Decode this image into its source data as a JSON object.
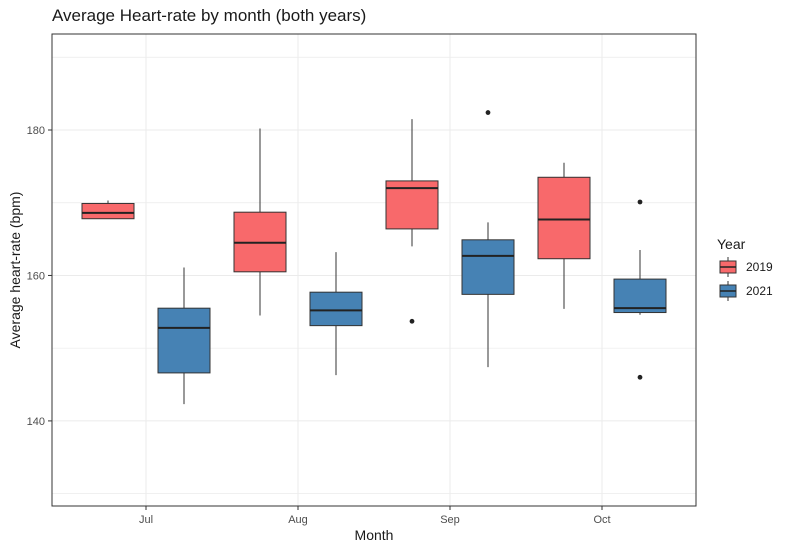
{
  "chart_data": {
    "type": "boxplot",
    "title": "Average Heart-rate by month (both years)",
    "xlabel": "Month",
    "ylabel": "Average heart-rate (bpm)",
    "categories": [
      "Jul",
      "Aug",
      "Sep",
      "Oct"
    ],
    "ylim": [
      128.3,
      193.2
    ],
    "yticks": [
      140,
      160,
      180
    ],
    "grid": true,
    "legend": {
      "title": "Year",
      "position": "right"
    },
    "series": [
      {
        "name": "2019",
        "color": "#F8696B",
        "boxes": [
          {
            "category": "Jul",
            "min": 167.8,
            "q1": 167.8,
            "median": 168.6,
            "q3": 169.9,
            "max": 170.3,
            "outliers": []
          },
          {
            "category": "Aug",
            "min": 154.5,
            "q1": 160.5,
            "median": 164.5,
            "q3": 168.7,
            "max": 180.2,
            "outliers": []
          },
          {
            "category": "Sep",
            "min": 164.0,
            "q1": 166.4,
            "median": 172.0,
            "q3": 173.0,
            "max": 181.5,
            "outliers": [
              153.7
            ]
          },
          {
            "category": "Oct",
            "min": 155.4,
            "q1": 162.3,
            "median": 167.7,
            "q3": 173.5,
            "max": 175.5,
            "outliers": []
          }
        ]
      },
      {
        "name": "2021",
        "color": "#4682B4",
        "boxes": [
          {
            "category": "Jul",
            "min": 142.3,
            "q1": 146.6,
            "median": 152.8,
            "q3": 155.5,
            "max": 161.1,
            "outliers": []
          },
          {
            "category": "Aug",
            "min": 146.3,
            "q1": 153.1,
            "median": 155.2,
            "q3": 157.7,
            "max": 163.2,
            "outliers": []
          },
          {
            "category": "Sep",
            "min": 147.4,
            "q1": 157.4,
            "median": 162.7,
            "q3": 164.9,
            "max": 167.3,
            "outliers": [
              182.4
            ]
          },
          {
            "category": "Oct",
            "min": 154.6,
            "q1": 154.9,
            "median": 155.5,
            "q3": 159.5,
            "max": 163.5,
            "outliers": [
              170.1,
              146.0
            ]
          }
        ]
      }
    ]
  }
}
